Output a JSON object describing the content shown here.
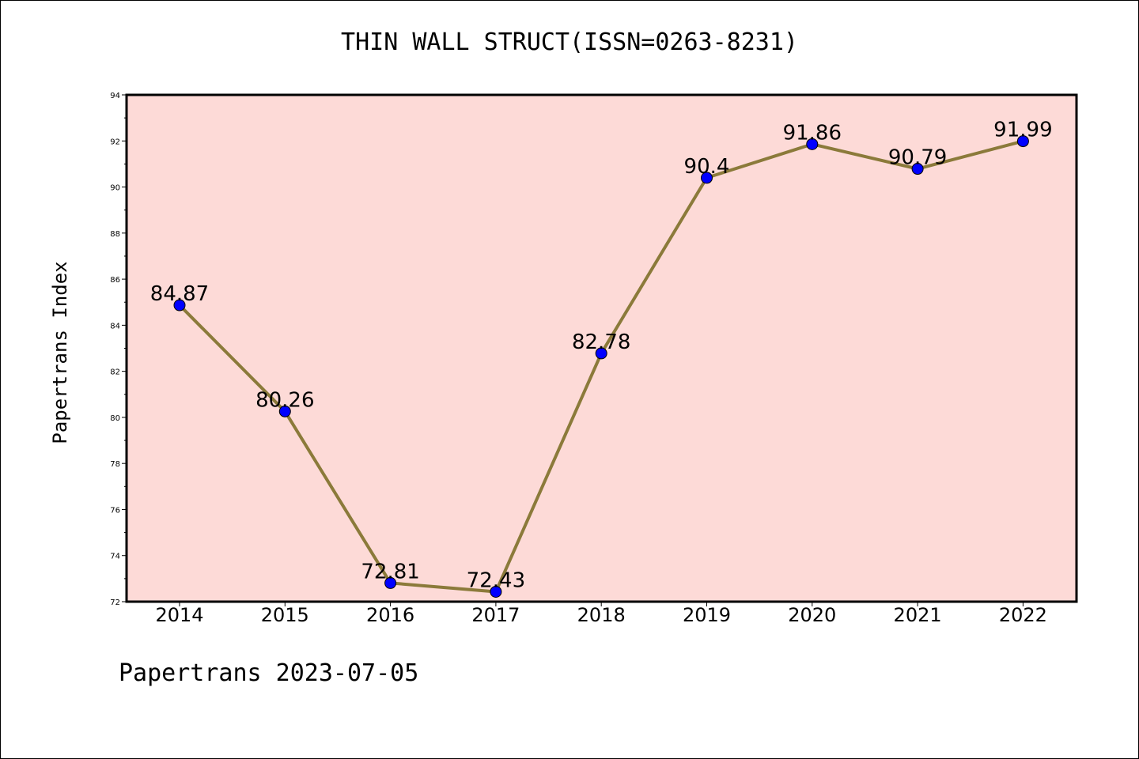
{
  "chart_data": {
    "type": "line",
    "title": "THIN WALL STRUCT(ISSN=0263-8231)",
    "ylabel": "Papertrans Index",
    "xlabel": "",
    "footer": "Papertrans 2023-07-05",
    "categories": [
      "2014",
      "2015",
      "2016",
      "2017",
      "2018",
      "2019",
      "2020",
      "2021",
      "2022"
    ],
    "series": [
      {
        "values": [
          84.87,
          80.26,
          72.81,
          72.43,
          82.78,
          90.4,
          91.86,
          90.79,
          91.99
        ],
        "labels": [
          "84.87",
          "80.26",
          "72.81",
          "72.43",
          "82.78",
          "90.4",
          "91.86",
          "90.79",
          "91.99"
        ],
        "line_color": "#8b7a3a",
        "marker_color": "#0000ff"
      }
    ],
    "ylim": [
      72,
      94
    ],
    "yticks": [
      "72",
      "74",
      "76",
      "78",
      "80",
      "82",
      "84",
      "86",
      "88",
      "90",
      "92",
      "94"
    ],
    "plot_background": "#fddad7",
    "grid": false,
    "legend": "none"
  }
}
